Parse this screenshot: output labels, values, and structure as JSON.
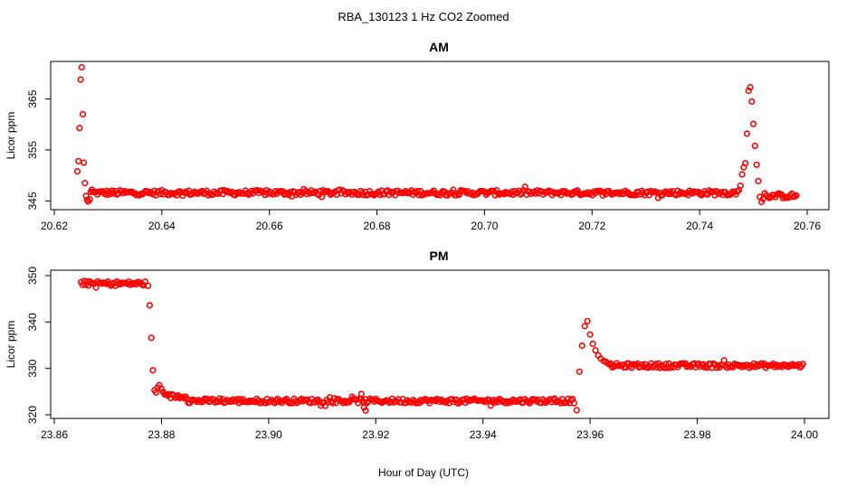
{
  "figure_title": "RBA_130123  1 Hz CO2 Zoomed",
  "marker_color": "#ff0000",
  "chart_data": [
    {
      "type": "scatter",
      "title": "AM",
      "xlabel": "",
      "ylabel": "Licor ppm",
      "xlim": [
        20.62,
        20.76
      ],
      "ylim": [
        344,
        372
      ],
      "x_ticks": [
        "20.62",
        "20.64",
        "20.66",
        "20.68",
        "20.70",
        "20.72",
        "20.74",
        "20.76"
      ],
      "y_ticks": [
        "345",
        "355",
        "365"
      ],
      "grid": false,
      "points": [
        [
          20.6243,
          350.8
        ],
        [
          20.6245,
          352.8
        ],
        [
          20.6247,
          359.3
        ],
        [
          20.6249,
          368.8
        ],
        [
          20.6251,
          371.2
        ],
        [
          20.6253,
          362.0
        ],
        [
          20.6255,
          352.5
        ],
        [
          20.6257,
          348.5
        ],
        [
          20.6259,
          346.0
        ],
        [
          20.6261,
          345.2
        ],
        [
          20.6263,
          344.9
        ],
        [
          20.6266,
          345.3
        ],
        [
          20.6268,
          346.8
        ],
        [
          20.627,
          347.2
        ],
        [
          20.747,
          346.9
        ],
        [
          20.7473,
          347.1
        ],
        [
          20.7476,
          348.0
        ],
        [
          20.7479,
          350.2
        ],
        [
          20.7482,
          351.6
        ],
        [
          20.7485,
          352.4
        ],
        [
          20.7488,
          358.2
        ],
        [
          20.7491,
          366.6
        ],
        [
          20.7494,
          367.3
        ],
        [
          20.7497,
          364.5
        ],
        [
          20.75,
          360.1
        ],
        [
          20.7503,
          355.8
        ],
        [
          20.7506,
          352.1
        ],
        [
          20.7509,
          348.9
        ],
        [
          20.7512,
          345.8
        ],
        [
          20.7515,
          344.8
        ],
        [
          20.7518,
          345.4
        ],
        [
          20.7521,
          346.5
        ],
        [
          20.7524,
          346.1
        ]
      ],
      "baseline_segments": [
        {
          "x_from": 20.6272,
          "x_to": 20.7468,
          "mean": 346.6
        },
        {
          "x_from": 20.7527,
          "x_to": 20.758,
          "mean": 346.0
        }
      ]
    },
    {
      "type": "scatter",
      "title": "PM",
      "xlabel": "Hour of Day (UTC)",
      "ylabel": "Licor ppm",
      "xlim": [
        23.86,
        24.0
      ],
      "ylim": [
        320,
        350
      ],
      "x_ticks": [
        "23.86",
        "23.88",
        "23.90",
        "23.92",
        "23.94",
        "23.96",
        "23.98",
        "24.00"
      ],
      "y_ticks": [
        "320",
        "330",
        "340",
        "350"
      ],
      "grid": false,
      "points": [
        [
          23.8775,
          347.8
        ],
        [
          23.8778,
          343.6
        ],
        [
          23.8781,
          336.6
        ],
        [
          23.8784,
          329.6
        ],
        [
          23.8787,
          325.3
        ],
        [
          23.879,
          324.8
        ],
        [
          23.8793,
          325.9
        ],
        [
          23.8796,
          326.4
        ],
        [
          23.88,
          325.6
        ],
        [
          23.8803,
          324.9
        ],
        [
          23.9173,
          324.5
        ],
        [
          23.9178,
          321.6
        ],
        [
          23.9181,
          320.9
        ],
        [
          23.9575,
          321.0
        ],
        [
          23.958,
          329.3
        ],
        [
          23.9585,
          334.9
        ],
        [
          23.959,
          339.1
        ],
        [
          23.9595,
          340.2
        ],
        [
          23.96,
          337.3
        ],
        [
          23.9605,
          335.3
        ],
        [
          23.961,
          333.9
        ],
        [
          23.9615,
          332.8
        ],
        [
          23.962,
          332.1
        ],
        [
          23.9625,
          331.6
        ],
        [
          23.963,
          331.4
        ]
      ],
      "baseline_segments": [
        {
          "x_from": 23.865,
          "x_to": 23.8772,
          "mean": 348.3
        },
        {
          "x_from": 23.8806,
          "x_to": 23.885,
          "mean": 324.0
        },
        {
          "x_from": 23.885,
          "x_to": 23.9572,
          "mean": 323.0
        },
        {
          "x_from": 23.9633,
          "x_to": 23.9998,
          "mean": 330.6
        }
      ]
    }
  ]
}
